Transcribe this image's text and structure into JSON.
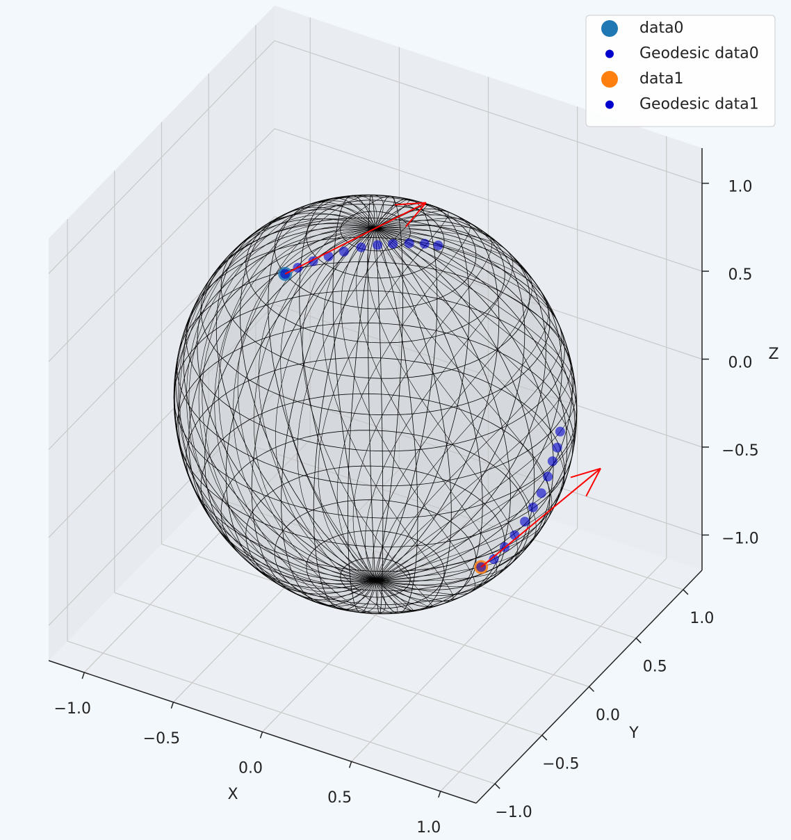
{
  "chart_data": {
    "type": "scatter3d",
    "xlabel": "X",
    "ylabel": "Y",
    "zlabel": "Z",
    "xlim": [
      -1.2,
      1.2
    ],
    "ylim": [
      -1.2,
      1.2
    ],
    "zlim": [
      -1.2,
      1.2
    ],
    "xticks": [
      {
        "value": -1,
        "label": "−1.0"
      },
      {
        "value": -0.5,
        "label": "−0.5"
      },
      {
        "value": 0,
        "label": "0.0"
      },
      {
        "value": 0.5,
        "label": "0.5"
      },
      {
        "value": 1,
        "label": "1.0"
      }
    ],
    "yticks": [
      {
        "value": -1,
        "label": "−1.0"
      },
      {
        "value": -0.5,
        "label": "−0.5"
      },
      {
        "value": 0,
        "label": "0.0"
      },
      {
        "value": 0.5,
        "label": "0.5"
      },
      {
        "value": 1,
        "label": "1.0"
      }
    ],
    "zticks": [
      {
        "value": -1,
        "label": "−1.0"
      },
      {
        "value": -0.5,
        "label": "−0.5"
      },
      {
        "value": 0,
        "label": "0.0"
      },
      {
        "value": 0.5,
        "label": "0.5"
      },
      {
        "value": 1,
        "label": "1.0"
      }
    ],
    "grid": true,
    "legend": "upper right",
    "vector_color": "#ff0000",
    "series": [
      {
        "name": "data0",
        "color": "#1f77b4",
        "x": [
          -0.29
        ],
        "y": [
          -0.41
        ],
        "z": [
          0.87
        ],
        "u": [
          0.58
        ],
        "v": [
          0.4
        ],
        "w": [
          0.38
        ]
      },
      {
        "name": "Geodesic data0",
        "color": "#0000cc",
        "x": [
          -0.29,
          -0.24,
          -0.18,
          -0.12,
          -0.06,
          0.01,
          0.07,
          0.13,
          0.19,
          0.25,
          0.3
        ],
        "y": [
          -0.41,
          -0.37,
          -0.32,
          -0.27,
          -0.22,
          -0.17,
          -0.11,
          -0.06,
          0.0,
          0.05,
          0.1
        ],
        "z": [
          0.87,
          0.9,
          0.93,
          0.95,
          0.97,
          0.99,
          0.99,
          0.99,
          0.98,
          0.97,
          0.95
        ]
      },
      {
        "name": "data1",
        "color": "#ff7f0e",
        "x": [
          0.8
        ],
        "y": [
          -0.39
        ],
        "z": [
          -0.44
        ],
        "u": [
          0.47
        ],
        "v": [
          0.38
        ],
        "w": [
          0.51
        ]
      },
      {
        "name": "Geodesic data1",
        "color": "#0000cc",
        "x": [
          0.8,
          0.85,
          0.89,
          0.92,
          0.95,
          0.97,
          0.99,
          1.0,
          1.0,
          1.0,
          0.99
        ],
        "y": [
          -0.39,
          -0.35,
          -0.31,
          -0.26,
          -0.21,
          -0.16,
          -0.11,
          -0.06,
          -0.01,
          0.04,
          0.09
        ],
        "z": [
          -0.44,
          -0.4,
          -0.34,
          -0.29,
          -0.23,
          -0.17,
          -0.11,
          -0.04,
          0.02,
          0.07,
          0.13
        ]
      }
    ]
  }
}
